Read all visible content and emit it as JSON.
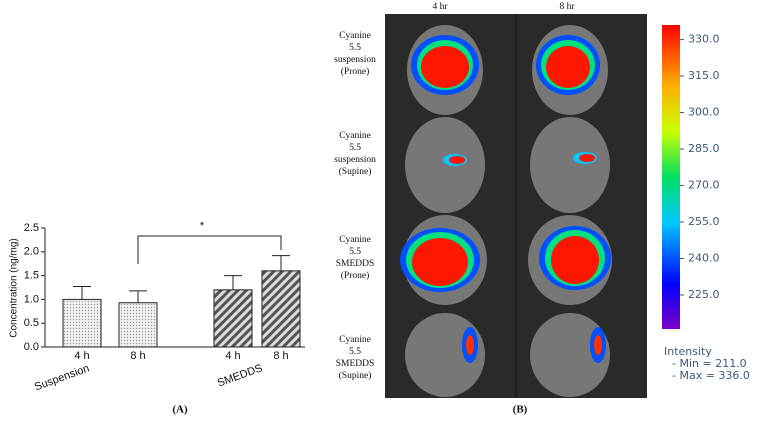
{
  "chart_data": {
    "type": "bar",
    "ylabel": "Concentration (ng/mg)",
    "categories": [
      "4 h",
      "8 h",
      "4 h",
      "8 h"
    ],
    "groups": [
      "Suspension",
      "SMEDDS"
    ],
    "values": [
      1.0,
      0.93,
      1.2,
      1.6
    ],
    "errors": [
      0.27,
      0.25,
      0.3,
      0.32
    ],
    "patterns": [
      "dots",
      "dots",
      "hatch",
      "hatch"
    ],
    "ylim": [
      0,
      2.5
    ],
    "yticks": [
      {
        "value": 0,
        "label": "0.0"
      },
      {
        "value": 0.5,
        "label": "0.5"
      },
      {
        "value": 1,
        "label": "1.0"
      },
      {
        "value": 1.5,
        "label": "1.5"
      },
      {
        "value": 2,
        "label": "2.0"
      },
      {
        "value": 2.5,
        "label": "2.5"
      }
    ],
    "annotation": "*",
    "panel_label": "(A)"
  },
  "panel_b": {
    "columns": [
      "4 hr",
      "8 hr"
    ],
    "rows": [
      [
        "Cyanine",
        "5.5",
        "suspension",
        "(Prone)"
      ],
      [
        "Cyanine",
        "5.5",
        "suspension",
        "(Supine)"
      ],
      [
        "Cyanine",
        "5.5",
        "SMEDDS",
        "(Prone)"
      ],
      [
        "Cyanine",
        "5.5",
        "SMEDDS",
        "(Supine)"
      ]
    ],
    "colorbar": {
      "clim": [
        211,
        336
      ],
      "ticks": [
        {
          "value": 330,
          "label": "330.0"
        },
        {
          "value": 315,
          "label": "315.0"
        },
        {
          "value": 300,
          "label": "300.0"
        },
        {
          "value": 285,
          "label": "285.0"
        },
        {
          "value": 270,
          "label": "270.0"
        },
        {
          "value": 255,
          "label": "255.0"
        },
        {
          "value": 240,
          "label": "240.0"
        },
        {
          "value": 225,
          "label": "225.0"
        }
      ]
    },
    "legend": [
      "Intensity",
      "- Min = 211.0",
      "- Max = 336.0"
    ],
    "panel_label": "(B)"
  }
}
